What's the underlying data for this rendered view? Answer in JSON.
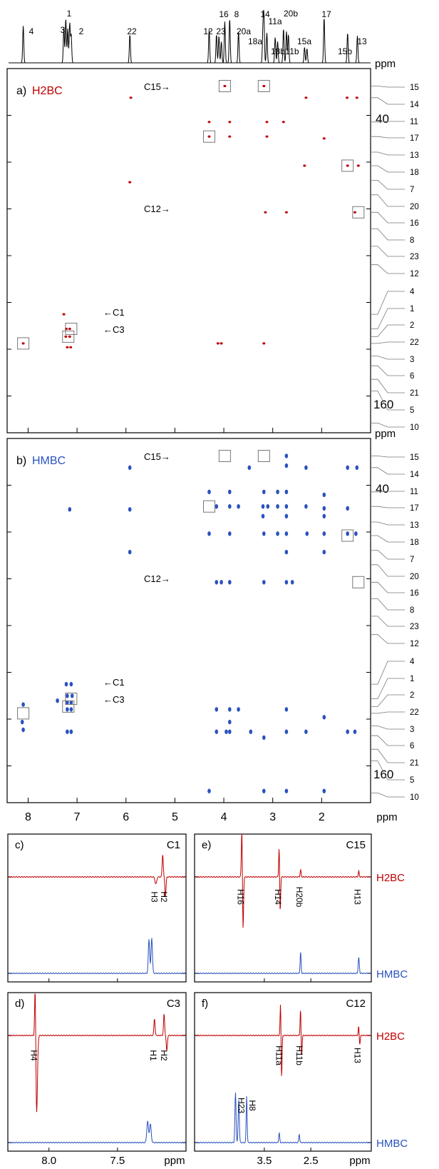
{
  "chart_data": [
    {
      "type": "scatter",
      "panel": "a",
      "title": "a) H2BC",
      "subtitle": "H2BC",
      "xlabel": "ppm",
      "ylabel": "ppm",
      "xlim": [
        8.4,
        1.0
      ],
      "ylim": [
        0,
        200
      ],
      "color": "#c00000",
      "y_ticks": [
        "40",
        "160"
      ],
      "carbon_labels": [
        "15",
        "14",
        "11",
        "17",
        "13",
        "18",
        "7",
        "20",
        "16",
        "8",
        "23",
        "12",
        "4",
        "1",
        "2",
        "22",
        "3",
        "6",
        "21",
        "5",
        "10"
      ],
      "annotations": [
        "C15→",
        "C12→",
        "←C1",
        "←C3"
      ],
      "cross_peaks": [
        {
          "x": 3.98,
          "y": 18
        },
        {
          "x": 3.18,
          "y": 18
        },
        {
          "x": 5.9,
          "y": 30
        },
        {
          "x": 2.32,
          "y": 30
        },
        {
          "x": 1.48,
          "y": 30
        },
        {
          "x": 1.28,
          "y": 30
        },
        {
          "x": 4.3,
          "y": 55
        },
        {
          "x": 3.88,
          "y": 55
        },
        {
          "x": 3.12,
          "y": 55
        },
        {
          "x": 2.78,
          "y": 55
        },
        {
          "x": 4.3,
          "y": 70
        },
        {
          "x": 3.88,
          "y": 70
        },
        {
          "x": 3.12,
          "y": 70
        },
        {
          "x": 1.95,
          "y": 72
        },
        {
          "x": 2.35,
          "y": 100
        },
        {
          "x": 1.47,
          "y": 100
        },
        {
          "x": 1.25,
          "y": 100
        },
        {
          "x": 5.92,
          "y": 117
        },
        {
          "x": 3.15,
          "y": 148
        },
        {
          "x": 2.72,
          "y": 148
        },
        {
          "x": 1.32,
          "y": 148
        },
        {
          "x": 7.27,
          "y": 253
        },
        {
          "x": 7.22,
          "y": 268
        },
        {
          "x": 7.15,
          "y": 268
        },
        {
          "x": 7.23,
          "y": 276
        },
        {
          "x": 7.15,
          "y": 276
        },
        {
          "x": 7.2,
          "y": 287
        },
        {
          "x": 7.13,
          "y": 287
        },
        {
          "x": 8.1,
          "y": 283
        },
        {
          "x": 4.12,
          "y": 283
        },
        {
          "x": 4.05,
          "y": 283
        },
        {
          "x": 3.18,
          "y": 283
        }
      ],
      "boxed": [
        {
          "x": 3.98,
          "y": 18
        },
        {
          "x": 3.18,
          "y": 18
        },
        {
          "x": 4.3,
          "y": 70
        },
        {
          "x": 1.47,
          "y": 100
        },
        {
          "x": 1.25,
          "y": 148
        },
        {
          "x": 7.12,
          "y": 268
        },
        {
          "x": 7.18,
          "y": 276
        },
        {
          "x": 8.1,
          "y": 283
        }
      ]
    },
    {
      "type": "scatter",
      "panel": "b",
      "title": "b) HMBC",
      "subtitle": "HMBC",
      "xlabel": "ppm",
      "ylabel": "ppm",
      "xlim": [
        8.4,
        1.0
      ],
      "ylim": [
        0,
        200
      ],
      "color": "#2a52be",
      "x_ticks": [
        "8",
        "7",
        "6",
        "5",
        "4",
        "3",
        "2"
      ],
      "y_ticks": [
        "40",
        "160"
      ],
      "carbon_labels": [
        "15",
        "14",
        "11",
        "17",
        "13",
        "18",
        "7",
        "20",
        "16",
        "8",
        "23",
        "12",
        "4",
        "1",
        "2",
        "22",
        "3",
        "6",
        "21",
        "5",
        "10"
      ],
      "annotations": [
        "C15→",
        "C12→",
        "←C1",
        "←C3"
      ],
      "cross_peaks": [
        {
          "x": 2.72,
          "y": 18
        },
        {
          "x": 2.72,
          "y": 28
        },
        {
          "x": 5.92,
          "y": 30
        },
        {
          "x": 3.48,
          "y": 30
        },
        {
          "x": 2.32,
          "y": 30
        },
        {
          "x": 1.47,
          "y": 30
        },
        {
          "x": 1.28,
          "y": 30
        },
        {
          "x": 4.3,
          "y": 55
        },
        {
          "x": 3.88,
          "y": 55
        },
        {
          "x": 3.18,
          "y": 55
        },
        {
          "x": 2.9,
          "y": 55
        },
        {
          "x": 2.72,
          "y": 55
        },
        {
          "x": 1.95,
          "y": 58
        },
        {
          "x": 4.15,
          "y": 70
        },
        {
          "x": 3.88,
          "y": 70
        },
        {
          "x": 3.7,
          "y": 70
        },
        {
          "x": 3.2,
          "y": 70
        },
        {
          "x": 3.1,
          "y": 70
        },
        {
          "x": 2.9,
          "y": 70
        },
        {
          "x": 2.72,
          "y": 70
        },
        {
          "x": 2.32,
          "y": 70
        },
        {
          "x": 1.95,
          "y": 72
        },
        {
          "x": 1.47,
          "y": 72
        },
        {
          "x": 7.15,
          "y": 73
        },
        {
          "x": 5.92,
          "y": 73
        },
        {
          "x": 3.2,
          "y": 80
        },
        {
          "x": 2.72,
          "y": 80
        },
        {
          "x": 1.95,
          "y": 80
        },
        {
          "x": 4.3,
          "y": 98
        },
        {
          "x": 3.88,
          "y": 98
        },
        {
          "x": 3.18,
          "y": 98
        },
        {
          "x": 2.9,
          "y": 98
        },
        {
          "x": 2.72,
          "y": 98
        },
        {
          "x": 2.3,
          "y": 98
        },
        {
          "x": 1.95,
          "y": 98
        },
        {
          "x": 1.47,
          "y": 98
        },
        {
          "x": 1.3,
          "y": 98
        },
        {
          "x": 5.92,
          "y": 117
        },
        {
          "x": 2.72,
          "y": 117
        },
        {
          "x": 1.95,
          "y": 117
        },
        {
          "x": 4.15,
          "y": 148
        },
        {
          "x": 4.05,
          "y": 148
        },
        {
          "x": 3.88,
          "y": 148
        },
        {
          "x": 3.18,
          "y": 148
        },
        {
          "x": 2.72,
          "y": 148
        },
        {
          "x": 2.6,
          "y": 148
        },
        {
          "x": 7.22,
          "y": 253
        },
        {
          "x": 7.12,
          "y": 253
        },
        {
          "x": 7.2,
          "y": 265
        },
        {
          "x": 7.1,
          "y": 265
        },
        {
          "x": 7.4,
          "y": 270
        },
        {
          "x": 7.2,
          "y": 272
        },
        {
          "x": 7.12,
          "y": 272
        },
        {
          "x": 8.1,
          "y": 274
        },
        {
          "x": 7.2,
          "y": 279
        },
        {
          "x": 7.12,
          "y": 279
        },
        {
          "x": 4.15,
          "y": 279
        },
        {
          "x": 3.88,
          "y": 279
        },
        {
          "x": 3.7,
          "y": 279
        },
        {
          "x": 2.72,
          "y": 279
        },
        {
          "x": 8.12,
          "y": 292
        },
        {
          "x": 1.95,
          "y": 287
        },
        {
          "x": 3.88,
          "y": 292
        },
        {
          "x": 8.1,
          "y": 300
        },
        {
          "x": 7.2,
          "y": 302
        },
        {
          "x": 7.12,
          "y": 302
        },
        {
          "x": 4.15,
          "y": 302
        },
        {
          "x": 3.95,
          "y": 302
        },
        {
          "x": 3.88,
          "y": 302
        },
        {
          "x": 3.45,
          "y": 302
        },
        {
          "x": 2.72,
          "y": 302
        },
        {
          "x": 2.32,
          "y": 302
        },
        {
          "x": 1.47,
          "y": 302
        },
        {
          "x": 1.32,
          "y": 302
        },
        {
          "x": 3.18,
          "y": 308
        },
        {
          "x": 4.3,
          "y": 363
        },
        {
          "x": 3.18,
          "y": 363
        },
        {
          "x": 2.72,
          "y": 363
        },
        {
          "x": 1.95,
          "y": 363
        }
      ],
      "boxed": [
        {
          "x": 3.98,
          "y": 18
        },
        {
          "x": 3.18,
          "y": 18
        },
        {
          "x": 4.3,
          "y": 70
        },
        {
          "x": 1.47,
          "y": 100
        },
        {
          "x": 1.25,
          "y": 148
        },
        {
          "x": 7.12,
          "y": 268
        },
        {
          "x": 7.18,
          "y": 276
        },
        {
          "x": 8.1,
          "y": 283
        }
      ]
    },
    {
      "type": "line",
      "panel": "c",
      "title": "c)",
      "subtitle": "C1",
      "xlabel": "ppm",
      "xlim": [
        8.3,
        7.0
      ],
      "x_ticks": [
        "8.0",
        "7.5"
      ],
      "traces": [
        {
          "name": "H2BC",
          "color": "#c00000",
          "peaks": [
            {
              "x": 7.22,
              "label": "H3"
            },
            {
              "x": 7.15,
              "label": "H2"
            }
          ]
        },
        {
          "name": "HMBC",
          "color": "#2a52be",
          "peaks": [
            {
              "x": 7.27
            },
            {
              "x": 7.25
            }
          ]
        }
      ]
    },
    {
      "type": "line",
      "panel": "d",
      "title": "d)",
      "subtitle": "C3",
      "xlabel": "ppm",
      "xlim": [
        8.3,
        7.0
      ],
      "x_ticks": [
        "8.0",
        "7.5"
      ],
      "traces": [
        {
          "name": "H2BC",
          "color": "#c00000",
          "peaks": [
            {
              "x": 8.1,
              "label": "H4"
            },
            {
              "x": 7.23,
              "label": "H1"
            },
            {
              "x": 7.15,
              "label": "H2"
            }
          ]
        },
        {
          "name": "HMBC",
          "color": "#2a52be",
          "peaks": [
            {
              "x": 7.28
            },
            {
              "x": 7.25
            }
          ]
        }
      ]
    },
    {
      "type": "line",
      "panel": "e",
      "title": "e)",
      "subtitle": "C15",
      "xlabel": "ppm",
      "xlim": [
        5.0,
        1.2
      ],
      "x_ticks": [
        "3.5",
        "2.5"
      ],
      "traces": [
        {
          "name": "H2BC",
          "color": "#c00000",
          "peaks": [
            {
              "x": 3.98,
              "label": "H16"
            },
            {
              "x": 3.18,
              "label": "H14"
            },
            {
              "x": 2.72,
              "label": "H20b"
            },
            {
              "x": 1.47,
              "label": "H13"
            }
          ]
        },
        {
          "name": "HMBC",
          "color": "#2a52be",
          "peaks": [
            {
              "x": 2.72
            },
            {
              "x": 1.47
            }
          ]
        }
      ]
    },
    {
      "type": "line",
      "panel": "f",
      "title": "f)",
      "subtitle": "C12",
      "xlabel": "ppm",
      "xlim": [
        5.0,
        1.2
      ],
      "x_ticks": [
        "3.5",
        "2.5"
      ],
      "traces": [
        {
          "name": "H2BC",
          "color": "#c00000",
          "peaks": [
            {
              "x": 3.15,
              "label": "H11a"
            },
            {
              "x": 2.72,
              "label": "H11b"
            },
            {
              "x": 1.47,
              "label": "H13"
            }
          ]
        },
        {
          "name": "HMBC",
          "color": "#2a52be",
          "peaks": [
            {
              "x": 4.12,
              "label": "H23"
            },
            {
              "x": 3.88,
              "label": "H8"
            },
            {
              "x": 3.18
            },
            {
              "x": 2.75
            }
          ]
        }
      ]
    }
  ],
  "top_spectrum": {
    "peak_labels": [
      "4",
      "3",
      "1",
      "2",
      "22",
      "12",
      "23",
      "16",
      "8",
      "20a",
      "14",
      "18a",
      "11a",
      "18b",
      "20b",
      "11b",
      "15a",
      "17",
      "15b",
      "13"
    ]
  }
}
